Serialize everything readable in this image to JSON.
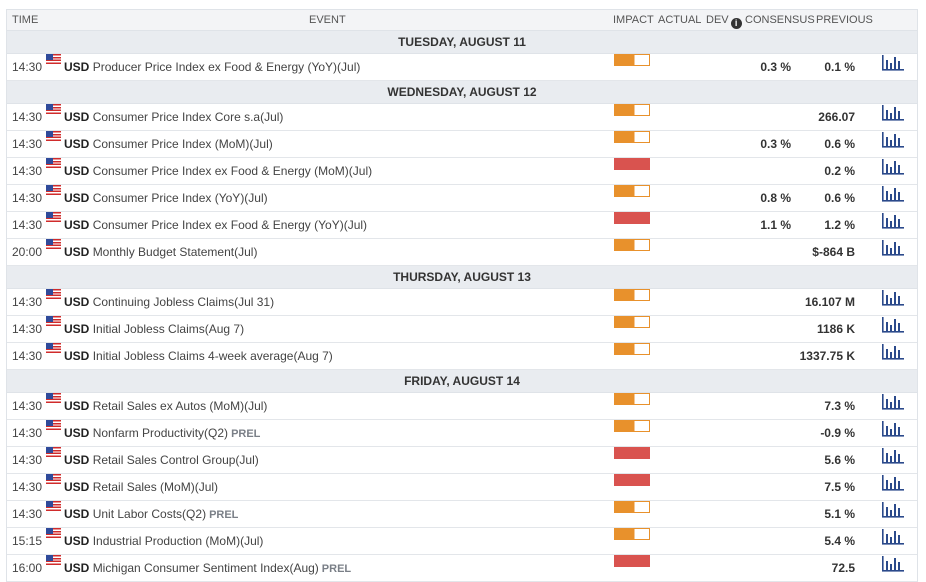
{
  "header": {
    "time": "TIME",
    "event": "EVENT",
    "impact": "IMPACT",
    "actual": "ACTUAL",
    "dev": "DEV",
    "consensus": "CONSENSUS",
    "previous": "PREVIOUS"
  },
  "colors": {
    "medium_impact": "#e8912c",
    "high_impact": "#d9534f",
    "chart_icon": "#2b4a8b"
  },
  "days": [
    {
      "label": "TUESDAY, AUGUST 11",
      "events": [
        {
          "time": "14:30",
          "currency": "USD",
          "name": "Producer Price Index ex Food & Energy (YoY)(Jul)",
          "tag": "",
          "impact": "medium",
          "consensus": "0.3 %",
          "previous": "0.1 %"
        }
      ]
    },
    {
      "label": "WEDNESDAY, AUGUST 12",
      "events": [
        {
          "time": "14:30",
          "currency": "USD",
          "name": "Consumer Price Index Core s.a(Jul)",
          "tag": "",
          "impact": "medium",
          "consensus": "",
          "previous": "266.07"
        },
        {
          "time": "14:30",
          "currency": "USD",
          "name": "Consumer Price Index (MoM)(Jul)",
          "tag": "",
          "impact": "medium",
          "consensus": "0.3 %",
          "previous": "0.6 %"
        },
        {
          "time": "14:30",
          "currency": "USD",
          "name": "Consumer Price Index ex Food & Energy (MoM)(Jul)",
          "tag": "",
          "impact": "high",
          "consensus": "",
          "previous": "0.2 %"
        },
        {
          "time": "14:30",
          "currency": "USD",
          "name": "Consumer Price Index (YoY)(Jul)",
          "tag": "",
          "impact": "medium",
          "consensus": "0.8 %",
          "previous": "0.6 %"
        },
        {
          "time": "14:30",
          "currency": "USD",
          "name": "Consumer Price Index ex Food & Energy (YoY)(Jul)",
          "tag": "",
          "impact": "high",
          "consensus": "1.1 %",
          "previous": "1.2 %"
        },
        {
          "time": "20:00",
          "currency": "USD",
          "name": "Monthly Budget Statement(Jul)",
          "tag": "",
          "impact": "medium",
          "consensus": "",
          "previous": "$-864 B"
        }
      ]
    },
    {
      "label": "THURSDAY, AUGUST 13",
      "events": [
        {
          "time": "14:30",
          "currency": "USD",
          "name": "Continuing Jobless Claims(Jul 31)",
          "tag": "",
          "impact": "medium",
          "consensus": "",
          "previous": "16.107 M"
        },
        {
          "time": "14:30",
          "currency": "USD",
          "name": "Initial Jobless Claims(Aug 7)",
          "tag": "",
          "impact": "medium",
          "consensus": "",
          "previous": "1186 K"
        },
        {
          "time": "14:30",
          "currency": "USD",
          "name": "Initial Jobless Claims 4-week average(Aug 7)",
          "tag": "",
          "impact": "medium",
          "consensus": "",
          "previous": "1337.75 K"
        }
      ]
    },
    {
      "label": "FRIDAY, AUGUST 14",
      "events": [
        {
          "time": "14:30",
          "currency": "USD",
          "name": "Retail Sales ex Autos (MoM)(Jul)",
          "tag": "",
          "impact": "medium",
          "consensus": "",
          "previous": "7.3 %"
        },
        {
          "time": "14:30",
          "currency": "USD",
          "name": "Nonfarm Productivity(Q2)",
          "tag": "PREL",
          "impact": "medium",
          "consensus": "",
          "previous": "-0.9 %"
        },
        {
          "time": "14:30",
          "currency": "USD",
          "name": "Retail Sales Control Group(Jul)",
          "tag": "",
          "impact": "high",
          "consensus": "",
          "previous": "5.6 %"
        },
        {
          "time": "14:30",
          "currency": "USD",
          "name": "Retail Sales (MoM)(Jul)",
          "tag": "",
          "impact": "high",
          "consensus": "",
          "previous": "7.5 %"
        },
        {
          "time": "14:30",
          "currency": "USD",
          "name": "Unit Labor Costs(Q2)",
          "tag": "PREL",
          "impact": "medium",
          "consensus": "",
          "previous": "5.1 %"
        },
        {
          "time": "15:15",
          "currency": "USD",
          "name": "Industrial Production (MoM)(Jul)",
          "tag": "",
          "impact": "medium",
          "consensus": "",
          "previous": "5.4 %"
        },
        {
          "time": "16:00",
          "currency": "USD",
          "name": "Michigan Consumer Sentiment Index(Aug)",
          "tag": "PREL",
          "impact": "high",
          "consensus": "",
          "previous": "72.5"
        }
      ]
    }
  ]
}
